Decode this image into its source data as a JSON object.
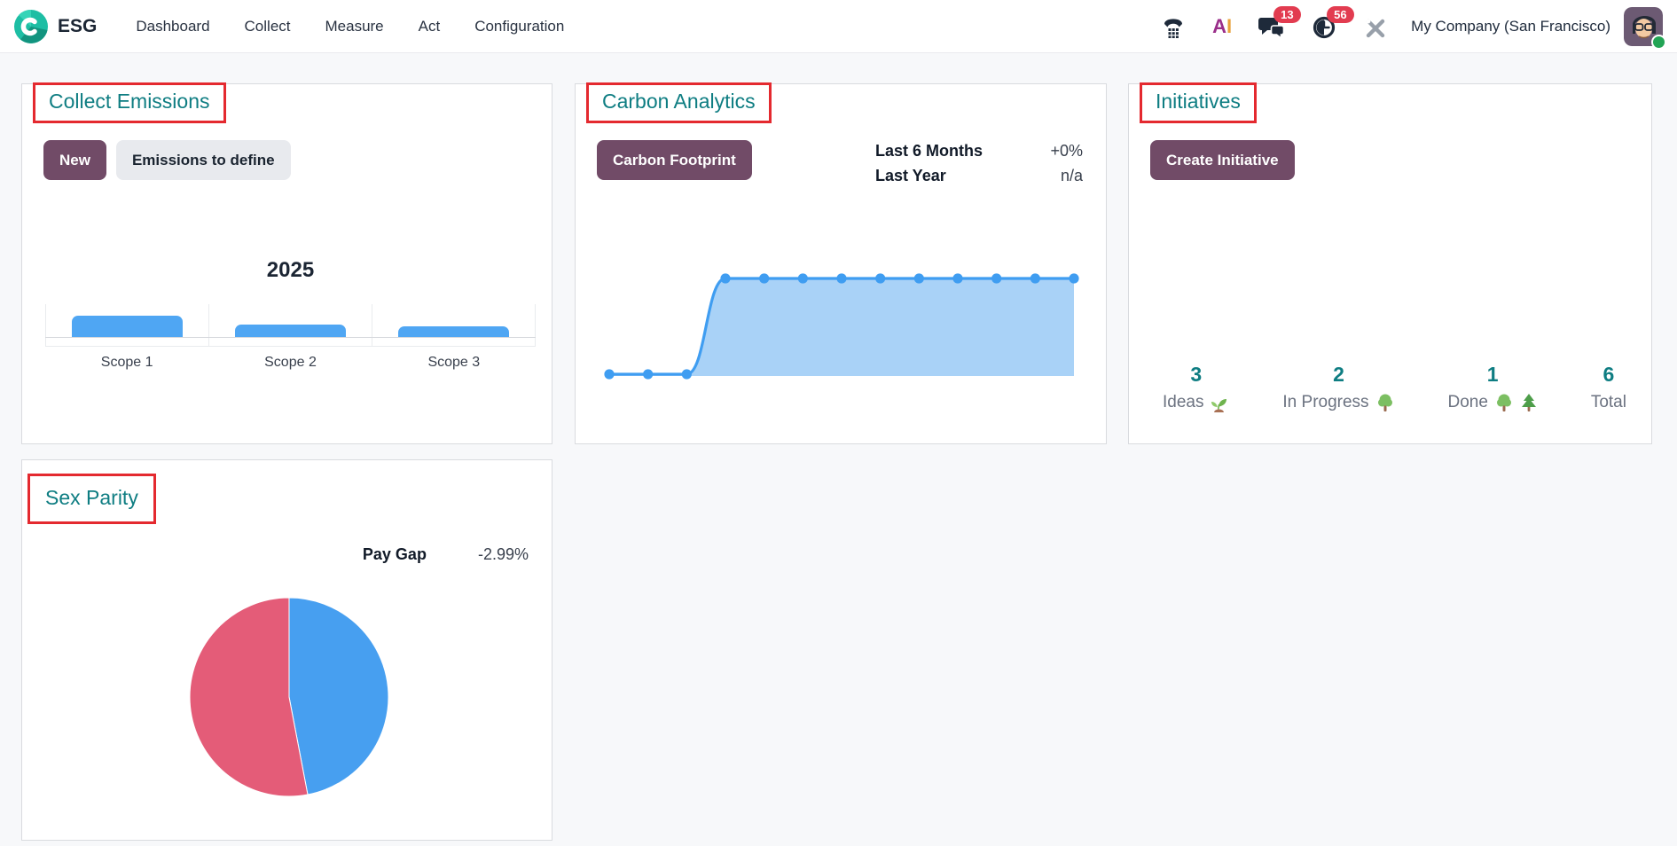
{
  "nav": {
    "app_name": "ESG",
    "menus": [
      "Dashboard",
      "Collect",
      "Measure",
      "Act",
      "Configuration"
    ],
    "messages_badge": "13",
    "activities_badge": "56",
    "company": "My Company (San Francisco)",
    "ai_icon_text": {
      "a": "A",
      "i": "I"
    }
  },
  "cards": {
    "collect_emissions": {
      "title": "Collect Emissions",
      "new_button": "New",
      "define_button": "Emissions to define",
      "chart": {
        "type": "bar",
        "title": "2025",
        "categories": [
          "Scope 1",
          "Scope 2",
          "Scope 3"
        ],
        "relative_heights": [
          1.0,
          0.6,
          0.52
        ],
        "bar_color": "#4fa6f3",
        "note": "no numeric axis labels visible"
      }
    },
    "carbon_analytics": {
      "title": "Carbon Analytics",
      "footprint_button": "Carbon Footprint",
      "stats": [
        {
          "label": "Last 6 Months",
          "value": "+0%"
        },
        {
          "label": "Last Year",
          "value": "n/a"
        }
      ],
      "chart": {
        "type": "area",
        "relative_values": [
          0,
          0,
          0,
          1,
          1,
          1,
          1,
          1,
          1,
          1,
          1,
          1,
          1
        ],
        "line_color": "#3f9df1",
        "fill_color": "#a9d2f7",
        "note": "13 points, flat at 0 then steps up to a constant level; no axis labels visible"
      }
    },
    "initiatives": {
      "title": "Initiatives",
      "create_button": "Create Initiative",
      "stats": [
        {
          "value": "3",
          "label": "Ideas",
          "icon": "seedling"
        },
        {
          "value": "2",
          "label": "In Progress",
          "icon": "tree"
        },
        {
          "value": "1",
          "label": "Done",
          "icon": "two-trees"
        },
        {
          "value": "6",
          "label": "Total",
          "icon": "none"
        }
      ]
    },
    "sex_parity": {
      "title": "Sex Parity",
      "stat": {
        "label": "Pay Gap",
        "value": "-2.99%"
      },
      "chart": {
        "type": "pie",
        "start_angle_deg": 0,
        "slices": [
          {
            "percent": 47,
            "color": "#479ff0"
          },
          {
            "percent": 53,
            "color": "#e45c78"
          }
        ],
        "note": "no slice labels visible"
      }
    }
  },
  "colors": {
    "accent_teal": "#0e7d82",
    "annotation_red": "#e4292f",
    "primary_purple": "#714b67",
    "badge_red": "#e23c50"
  }
}
